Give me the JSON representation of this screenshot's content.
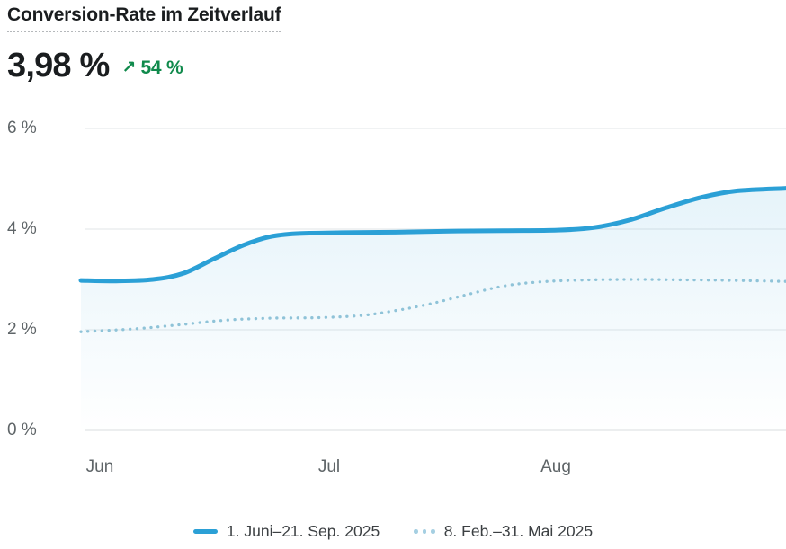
{
  "header": {
    "title": "Conversion-Rate im Zeitverlauf"
  },
  "metric": {
    "value": "3,98 %",
    "trend_arrow": "↗",
    "change": "54 %",
    "direction": "up"
  },
  "colors": {
    "current_line": "#2ba0d6",
    "previous_line": "#8fc3d8",
    "previous_swatch": "#a5cfe2",
    "area_fill": "#2ba0d6",
    "trend_positive": "#108a4c",
    "gridline": "#e8eaec",
    "gridline_zero": "#e0e3e5",
    "axis_text": "#5f6568"
  },
  "legend": {
    "items": [
      {
        "label": "1. Juni–21. Sep. 2025",
        "style": "solid"
      },
      {
        "label": "8. Feb.–31. Mai 2025",
        "style": "dotted"
      }
    ]
  },
  "chart_data": {
    "type": "line",
    "title": "Conversion-Rate im Zeitverlauf",
    "unit": "%",
    "ylim": [
      0,
      6
    ],
    "grid": true,
    "legend_position": "bottom",
    "y_axis": {
      "ticks": [
        {
          "label": "6 %",
          "value": 6
        },
        {
          "label": "4 %",
          "value": 4
        },
        {
          "label": "2 %",
          "value": 2
        },
        {
          "label": "0 %",
          "value": 0
        }
      ]
    },
    "x_axis": {
      "ticks": [
        {
          "label": "Jun",
          "pos": 0.027
        },
        {
          "label": "Jul",
          "pos": 0.352
        },
        {
          "label": "Aug",
          "pos": 0.673
        }
      ]
    },
    "series": [
      {
        "name": "1. Juni–21. Sep. 2025",
        "style": "solid",
        "color": "#2ba0d6",
        "points": [
          [
            0.0,
            2.98
          ],
          [
            0.05,
            2.97
          ],
          [
            0.102,
            3.0
          ],
          [
            0.145,
            3.12
          ],
          [
            0.19,
            3.42
          ],
          [
            0.23,
            3.68
          ],
          [
            0.268,
            3.85
          ],
          [
            0.306,
            3.91
          ],
          [
            0.37,
            3.93
          ],
          [
            0.446,
            3.94
          ],
          [
            0.523,
            3.96
          ],
          [
            0.6,
            3.97
          ],
          [
            0.676,
            3.98
          ],
          [
            0.727,
            4.03
          ],
          [
            0.778,
            4.18
          ],
          [
            0.829,
            4.42
          ],
          [
            0.88,
            4.63
          ],
          [
            0.931,
            4.76
          ],
          [
            1.0,
            4.81
          ]
        ]
      },
      {
        "name": "8. Feb.–31. Mai 2025",
        "style": "dotted",
        "color": "#8fc3d8",
        "points": [
          [
            0.0,
            1.96
          ],
          [
            0.077,
            2.02
          ],
          [
            0.14,
            2.1
          ],
          [
            0.204,
            2.19
          ],
          [
            0.268,
            2.23
          ],
          [
            0.332,
            2.24
          ],
          [
            0.395,
            2.28
          ],
          [
            0.446,
            2.38
          ],
          [
            0.497,
            2.52
          ],
          [
            0.548,
            2.7
          ],
          [
            0.6,
            2.87
          ],
          [
            0.651,
            2.95
          ],
          [
            0.714,
            2.99
          ],
          [
            0.791,
            3.0
          ],
          [
            0.867,
            2.99
          ],
          [
            0.931,
            2.98
          ],
          [
            1.0,
            2.96
          ]
        ]
      }
    ]
  }
}
